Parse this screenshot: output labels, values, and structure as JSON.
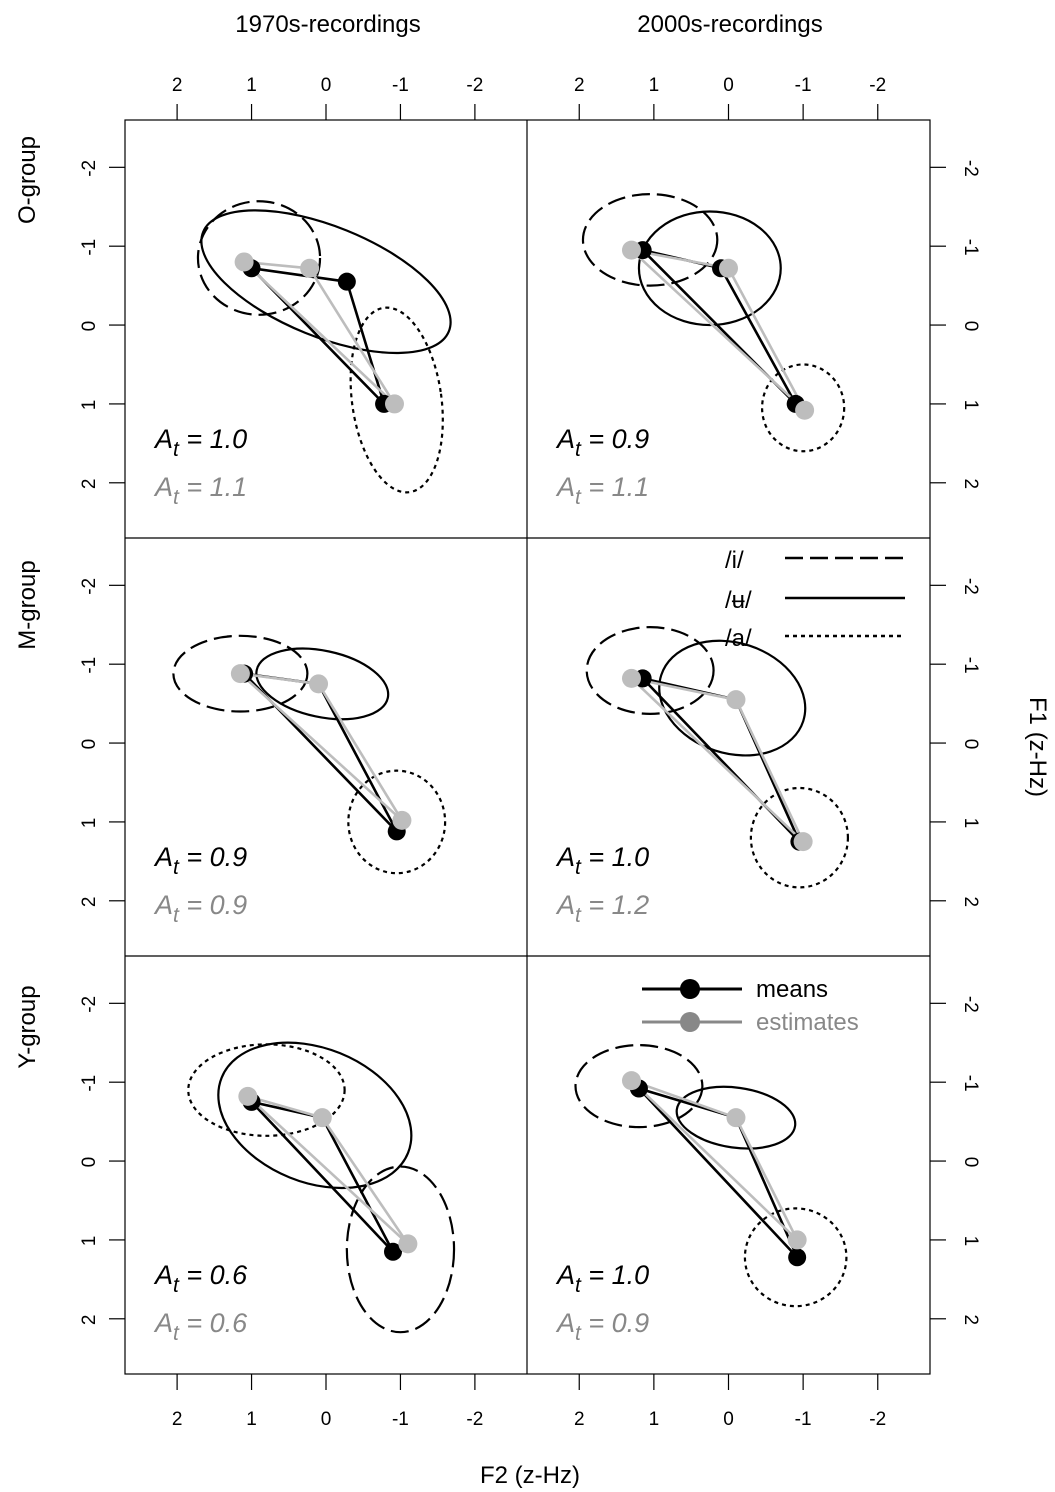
{
  "chart_data": {
    "type": "scatter",
    "xlabel": "F2 (z-Hz)",
    "ylabel": "F1 (z-Hz)",
    "xlim": [
      2.7,
      -2.7
    ],
    "ylim": [
      -2.6,
      2.7
    ],
    "x_ticks": [
      "2",
      "1",
      "0",
      "-1",
      "-2"
    ],
    "y_ticks": [
      "-2",
      "-1",
      "0",
      "1",
      "2"
    ],
    "x_tick_values": [
      2,
      1,
      0,
      -1,
      -2
    ],
    "y_tick_values": [
      -2,
      -1,
      0,
      1,
      2
    ],
    "columns": [
      "1970s-recordings",
      "2000s-recordings"
    ],
    "rows": [
      "O-group",
      "M-group",
      "Y-group"
    ],
    "legend_vowels": [
      {
        "label": "/i/",
        "dash": "long-dash"
      },
      {
        "label": "/ʉ/",
        "dash": "solid"
      },
      {
        "label": "/a/",
        "dash": "dotted"
      }
    ],
    "legend_series": [
      {
        "label": "means",
        "color": "#000000"
      },
      {
        "label": "estimates",
        "color": "#888888"
      }
    ],
    "colors": {
      "means": "#000000",
      "estimates": "#bdbdbd",
      "estimates_text": "#888888"
    },
    "panels": [
      {
        "row": "O-group",
        "col": "1970s-recordings",
        "means": [
          [
            1.0,
            -0.72
          ],
          [
            -0.28,
            -0.55
          ],
          [
            -0.78,
            1.0
          ]
        ],
        "estimates": [
          [
            1.1,
            -0.8
          ],
          [
            0.22,
            -0.72
          ],
          [
            -0.92,
            1.0
          ]
        ],
        "ellipses": [
          {
            "vowel": "/i/",
            "dash": "long-dash",
            "cx": 0.9,
            "cy": -0.85,
            "rx": 0.82,
            "ry": 0.72,
            "angle": 0
          },
          {
            "vowel": "/ʉ/",
            "dash": "solid",
            "cx": 0.0,
            "cy": -0.55,
            "rx": 1.78,
            "ry": 0.7,
            "angle": 22
          },
          {
            "vowel": "/a/",
            "dash": "dotted",
            "cx": -0.95,
            "cy": 0.95,
            "rx": 0.6,
            "ry": 1.18,
            "angle": -8
          }
        ],
        "at_mean": "1.0",
        "at_est": "1.1"
      },
      {
        "row": "O-group",
        "col": "2000s-recordings",
        "means": [
          [
            1.15,
            -0.95
          ],
          [
            0.1,
            -0.72
          ],
          [
            -0.9,
            1.0
          ]
        ],
        "estimates": [
          [
            1.3,
            -0.95
          ],
          [
            0.0,
            -0.72
          ],
          [
            -1.02,
            1.08
          ]
        ],
        "ellipses": [
          {
            "vowel": "/i/",
            "dash": "long-dash",
            "cx": 1.05,
            "cy": -1.08,
            "rx": 0.9,
            "ry": 0.58,
            "angle": 0
          },
          {
            "vowel": "/ʉ/",
            "dash": "solid",
            "cx": 0.25,
            "cy": -0.72,
            "rx": 0.95,
            "ry": 0.72,
            "angle": 0
          },
          {
            "vowel": "/a/",
            "dash": "dotted",
            "cx": -1.0,
            "cy": 1.05,
            "rx": 0.55,
            "ry": 0.55,
            "angle": 0
          }
        ],
        "at_mean": "0.9",
        "at_est": "1.1"
      },
      {
        "row": "M-group",
        "col": "1970s-recordings",
        "means": [
          [
            1.1,
            -0.88
          ],
          [
            0.1,
            -0.75
          ],
          [
            -0.95,
            1.12
          ]
        ],
        "estimates": [
          [
            1.15,
            -0.88
          ],
          [
            0.1,
            -0.75
          ],
          [
            -1.02,
            0.98
          ]
        ],
        "ellipses": [
          {
            "vowel": "/i/",
            "dash": "long-dash",
            "cx": 1.15,
            "cy": -0.88,
            "rx": 0.9,
            "ry": 0.48,
            "angle": 0
          },
          {
            "vowel": "/ʉ/",
            "dash": "solid",
            "cx": 0.05,
            "cy": -0.75,
            "rx": 0.9,
            "ry": 0.42,
            "angle": 12
          },
          {
            "vowel": "/a/",
            "dash": "dotted",
            "cx": -0.95,
            "cy": 1.0,
            "rx": 0.65,
            "ry": 0.65,
            "angle": 0
          }
        ],
        "at_mean": "0.9",
        "at_est": "0.9"
      },
      {
        "row": "M-group",
        "col": "2000s-recordings",
        "means": [
          [
            1.15,
            -0.82
          ],
          [
            -0.1,
            -0.55
          ],
          [
            -0.95,
            1.25
          ]
        ],
        "estimates": [
          [
            1.3,
            -0.82
          ],
          [
            -0.1,
            -0.55
          ],
          [
            -1.0,
            1.25
          ]
        ],
        "ellipses": [
          {
            "vowel": "/i/",
            "dash": "long-dash",
            "cx": 1.05,
            "cy": -0.92,
            "rx": 0.85,
            "ry": 0.55,
            "angle": 0
          },
          {
            "vowel": "/ʉ/",
            "dash": "solid",
            "cx": -0.05,
            "cy": -0.57,
            "rx": 1.0,
            "ry": 0.7,
            "angle": 18
          },
          {
            "vowel": "/a/",
            "dash": "dotted",
            "cx": -0.95,
            "cy": 1.2,
            "rx": 0.65,
            "ry": 0.63,
            "angle": 0
          }
        ],
        "at_mean": "1.0",
        "at_est": "1.2"
      },
      {
        "row": "Y-group",
        "col": "1970s-recordings",
        "means": [
          [
            1.0,
            -0.75
          ],
          [
            0.05,
            -0.55
          ],
          [
            -0.9,
            1.15
          ]
        ],
        "estimates": [
          [
            1.05,
            -0.82
          ],
          [
            0.05,
            -0.55
          ],
          [
            -1.1,
            1.05
          ]
        ],
        "ellipses": [
          {
            "vowel": "/a/",
            "dash": "dotted",
            "cx": 0.8,
            "cy": -0.9,
            "rx": 1.05,
            "ry": 0.58,
            "angle": 0
          },
          {
            "vowel": "/ʉ/",
            "dash": "solid",
            "cx": 0.15,
            "cy": -0.58,
            "rx": 1.35,
            "ry": 0.85,
            "angle": 22
          },
          {
            "vowel": "/i/",
            "dash": "long-dash",
            "cx": -1.0,
            "cy": 1.12,
            "rx": 0.72,
            "ry": 1.05,
            "angle": 0
          }
        ],
        "at_mean": "0.6",
        "at_est": "0.6"
      },
      {
        "row": "Y-group",
        "col": "2000s-recordings",
        "means": [
          [
            1.2,
            -0.92
          ],
          [
            -0.1,
            -0.55
          ],
          [
            -0.92,
            1.22
          ]
        ],
        "estimates": [
          [
            1.3,
            -1.02
          ],
          [
            -0.1,
            -0.55
          ],
          [
            -0.92,
            1.0
          ]
        ],
        "ellipses": [
          {
            "vowel": "/i/",
            "dash": "long-dash",
            "cx": 1.2,
            "cy": -0.95,
            "rx": 0.85,
            "ry": 0.52,
            "angle": 0
          },
          {
            "vowel": "/ʉ/",
            "dash": "solid",
            "cx": -0.1,
            "cy": -0.55,
            "rx": 0.8,
            "ry": 0.38,
            "angle": 8
          },
          {
            "vowel": "/a/",
            "dash": "dotted",
            "cx": -0.9,
            "cy": 1.22,
            "rx": 0.68,
            "ry": 0.62,
            "angle": 0
          }
        ],
        "at_mean": "1.0",
        "at_est": "0.9"
      }
    ]
  }
}
